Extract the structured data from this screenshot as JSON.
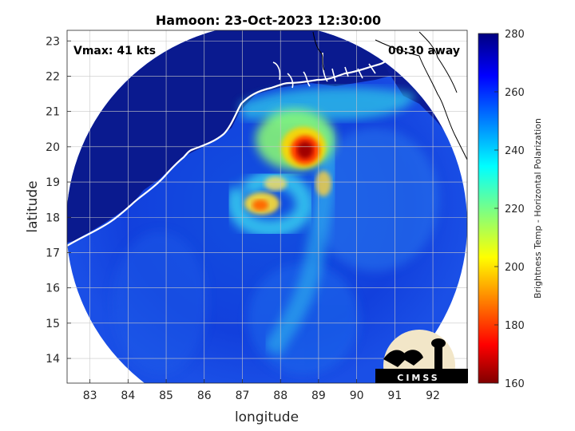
{
  "title": "Hamoon: 23-Oct-2023 12:30:00",
  "vmax_label": "Vmax: 41 kts",
  "time_label": "00:30 away",
  "logo_text": "CIMSS",
  "colors": {
    "land": "#0a1a8f",
    "coast": "#ffffff",
    "frame_outside": "#ffffff"
  },
  "chart_data": {
    "type": "heatmap",
    "xlabel": "longitude",
    "ylabel": "latitude",
    "xlim": [
      82.4,
      92.9
    ],
    "ylim": [
      13.3,
      23.3
    ],
    "xticks": [
      "83",
      "84",
      "85",
      "86",
      "87",
      "88",
      "89",
      "90",
      "91",
      "92"
    ],
    "xtick_values": [
      83,
      84,
      85,
      86,
      87,
      88,
      89,
      90,
      91,
      92
    ],
    "yticks": [
      "14",
      "15",
      "16",
      "17",
      "18",
      "19",
      "20",
      "21",
      "22",
      "23"
    ],
    "ytick_values": [
      14,
      15,
      16,
      17,
      18,
      19,
      20,
      21,
      22,
      23
    ],
    "grid": true,
    "colorbar": {
      "label": "Brightness Temp - Horizontal Polarization",
      "range": [
        160,
        280
      ],
      "ticks": [
        "280",
        "260",
        "240",
        "220",
        "200",
        "180",
        "160"
      ],
      "tick_values": [
        280,
        260,
        240,
        220,
        200,
        180,
        160
      ],
      "colormap": "jet"
    },
    "swath": {
      "center_lon": 87.7,
      "center_lat": 18.3,
      "radius_deg": 5.3
    },
    "storm": {
      "name": "Hamoon",
      "center_lon": 87.6,
      "center_lat": 18.3,
      "vmax_kts": 41
    }
  }
}
